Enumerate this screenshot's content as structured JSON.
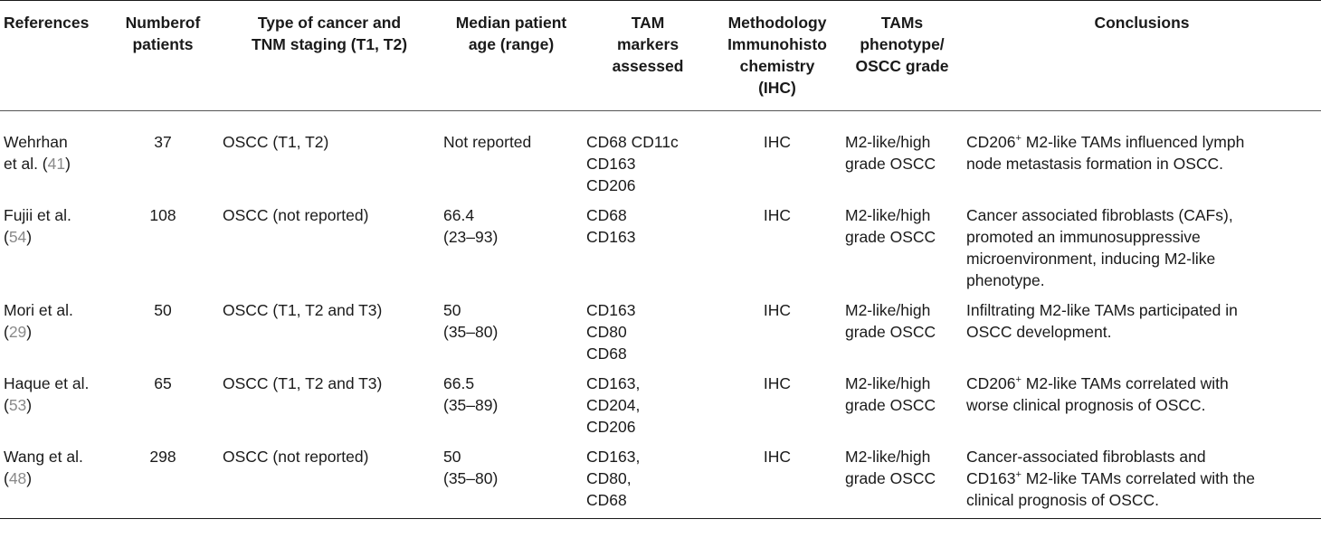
{
  "headers": [
    "References",
    "Numberof\npatients",
    "Type of cancer and\nTNM staging (T1, T2)",
    "Median patient\nage (range)",
    "TAM\nmarkers\nassessed",
    "Methodology\nImmunohisto\nchemistry\n(IHC)",
    "TAMs\nphenotype/\nOSCC grade",
    "Conclusions"
  ],
  "rows": [
    {
      "ref_name": "Wehrhan\net al. (",
      "ref_num": "41",
      "ref_close": ")",
      "patients": "37",
      "cancer": "OSCC (T1, T2)",
      "age": "Not reported",
      "markers": "CD68 CD11c\nCD163\nCD206",
      "method": "IHC",
      "phenotype": "M2-like/high\ngrade OSCC",
      "conc_pre": "CD206",
      "conc_sup": "+",
      "conc_post": " M2-like TAMs influenced lymph\nnode metastasis formation in OSCC."
    },
    {
      "ref_name": "Fujii et al.\n(",
      "ref_num": "54",
      "ref_close": ")",
      "patients": "108",
      "cancer": "OSCC (not reported)",
      "age": "66.4\n(23–93)",
      "markers": "CD68\nCD163",
      "method": "IHC",
      "phenotype": "M2-like/high\ngrade OSCC",
      "conc_pre": "Cancer associated fibroblasts (CAFs),\npromoted an immunosuppressive\nmicroenvironment, inducing M2-like\nphenotype.",
      "conc_sup": "",
      "conc_post": ""
    },
    {
      "ref_name": "Mori et al.\n(",
      "ref_num": "29",
      "ref_close": ")",
      "patients": "50",
      "cancer": "OSCC (T1, T2 and T3)",
      "age": "50\n(35–80)",
      "markers": "CD163\nCD80\nCD68",
      "method": "IHC",
      "phenotype": "M2-like/high\ngrade OSCC",
      "conc_pre": "Infiltrating M2-like TAMs participated in\nOSCC development.",
      "conc_sup": "",
      "conc_post": ""
    },
    {
      "ref_name": "Haque et al.\n(",
      "ref_num": "53",
      "ref_close": ")",
      "patients": "65",
      "cancer": "OSCC (T1, T2 and T3)",
      "age": "66.5\n(35–89)",
      "markers": "CD163,\nCD204,\nCD206",
      "method": "IHC",
      "phenotype": "M2-like/high\ngrade OSCC",
      "conc_pre": "CD206",
      "conc_sup": "+",
      "conc_post": " M2-like TAMs correlated with\nworse clinical prognosis of OSCC."
    },
    {
      "ref_name": "Wang et al.\n(",
      "ref_num": "48",
      "ref_close": ")",
      "patients": "298",
      "cancer": "OSCC (not reported)",
      "age": "50\n(35–80)",
      "markers": "CD163,\nCD80,\nCD68",
      "method": "IHC",
      "phenotype": "M2-like/high\ngrade OSCC",
      "conc_pre": "Cancer-associated fibroblasts and\nCD163",
      "conc_sup": "+",
      "conc_post": " M2-like TAMs correlated with the\nclinical prognosis of OSCC."
    }
  ]
}
